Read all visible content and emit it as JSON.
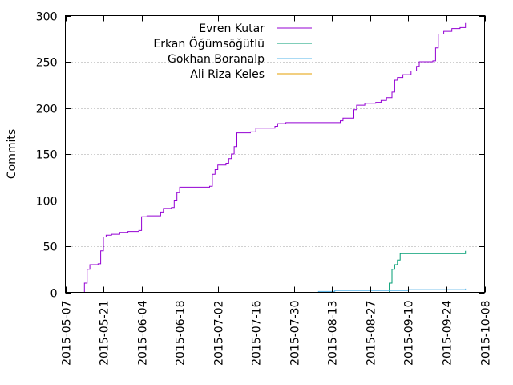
{
  "chart_data": {
    "type": "line",
    "title": "",
    "xlabel": "",
    "ylabel": "Commits",
    "ylim": [
      0,
      300
    ],
    "xlim": [
      "2015-05-07",
      "2015-10-08"
    ],
    "y_ticks": [
      0,
      50,
      100,
      150,
      200,
      250,
      300
    ],
    "x_ticks": [
      "2015-05-07",
      "2015-05-21",
      "2015-06-04",
      "2015-06-18",
      "2015-07-02",
      "2015-07-16",
      "2015-07-30",
      "2015-08-13",
      "2015-08-27",
      "2015-09-10",
      "2015-09-24",
      "2015-10-08"
    ],
    "grid": "horizontal",
    "legend_position": "top-right",
    "series": [
      {
        "name": "Evren Kutar",
        "color": "#9400d3",
        "points": [
          [
            "2015-05-14",
            0
          ],
          [
            "2015-05-14",
            10
          ],
          [
            "2015-05-15",
            22
          ],
          [
            "2015-05-15",
            25
          ],
          [
            "2015-05-16",
            30
          ],
          [
            "2015-05-19",
            31
          ],
          [
            "2015-05-20",
            45
          ],
          [
            "2015-05-21",
            60
          ],
          [
            "2015-05-22",
            62
          ],
          [
            "2015-05-24",
            63
          ],
          [
            "2015-05-27",
            65
          ],
          [
            "2015-05-30",
            66
          ],
          [
            "2015-06-03",
            67
          ],
          [
            "2015-06-04",
            82
          ],
          [
            "2015-06-06",
            83
          ],
          [
            "2015-06-08",
            83
          ],
          [
            "2015-06-11",
            87
          ],
          [
            "2015-06-12",
            91
          ],
          [
            "2015-06-15",
            92
          ],
          [
            "2015-06-16",
            100
          ],
          [
            "2015-06-17",
            108
          ],
          [
            "2015-06-18",
            114
          ],
          [
            "2015-06-21",
            114
          ],
          [
            "2015-06-29",
            115
          ],
          [
            "2015-06-30",
            128
          ],
          [
            "2015-07-01",
            133
          ],
          [
            "2015-07-02",
            138
          ],
          [
            "2015-07-05",
            140
          ],
          [
            "2015-07-06",
            145
          ],
          [
            "2015-07-07",
            150
          ],
          [
            "2015-07-08",
            158
          ],
          [
            "2015-07-09",
            173
          ],
          [
            "2015-07-14",
            174
          ],
          [
            "2015-07-16",
            178
          ],
          [
            "2015-07-23",
            180
          ],
          [
            "2015-07-24",
            183
          ],
          [
            "2015-07-27",
            184
          ],
          [
            "2015-08-07",
            184
          ],
          [
            "2015-08-15",
            184
          ],
          [
            "2015-08-16",
            186
          ],
          [
            "2015-08-17",
            189
          ],
          [
            "2015-08-21",
            198
          ],
          [
            "2015-08-22",
            203
          ],
          [
            "2015-08-25",
            205
          ],
          [
            "2015-08-29",
            206
          ],
          [
            "2015-08-31",
            208
          ],
          [
            "2015-09-02",
            211
          ],
          [
            "2015-09-04",
            217
          ],
          [
            "2015-09-05",
            230
          ],
          [
            "2015-09-06",
            233
          ],
          [
            "2015-09-08",
            236
          ],
          [
            "2015-09-11",
            240
          ],
          [
            "2015-09-13",
            245
          ],
          [
            "2015-09-14",
            250
          ],
          [
            "2015-09-19",
            251
          ],
          [
            "2015-09-20",
            265
          ],
          [
            "2015-09-21",
            280
          ],
          [
            "2015-09-23",
            283
          ],
          [
            "2015-09-26",
            286
          ],
          [
            "2015-09-29",
            287
          ],
          [
            "2015-10-01",
            287
          ],
          [
            "2015-10-01",
            292
          ]
        ]
      },
      {
        "name": "Erkan Öğümsöğütlü",
        "color": "#009e73",
        "points": [
          [
            "2015-05-14",
            0
          ],
          [
            "2015-09-03",
            0
          ],
          [
            "2015-09-03",
            10
          ],
          [
            "2015-09-04",
            25
          ],
          [
            "2015-09-05",
            30
          ],
          [
            "2015-09-06",
            35
          ],
          [
            "2015-09-07",
            42
          ],
          [
            "2015-10-01",
            42
          ],
          [
            "2015-10-01",
            45
          ]
        ]
      },
      {
        "name": "Gokhan Boranalp",
        "color": "#56b4e9",
        "points": [
          [
            "2015-05-14",
            0
          ],
          [
            "2015-08-08",
            1
          ],
          [
            "2015-08-14",
            2
          ],
          [
            "2015-09-10",
            3
          ],
          [
            "2015-10-01",
            4
          ]
        ]
      },
      {
        "name": "Ali Riza Keles",
        "color": "#e69f00",
        "points": [
          [
            "2015-05-14",
            0
          ],
          [
            "2015-10-01",
            0
          ]
        ]
      }
    ]
  }
}
